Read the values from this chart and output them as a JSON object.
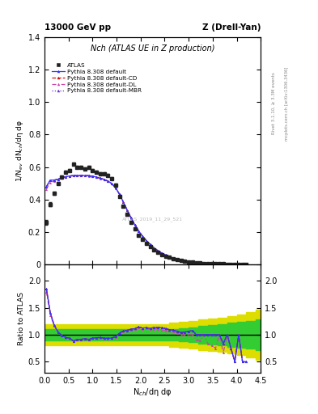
{
  "title_top": "13000 GeV pp",
  "title_right": "Z (Drell-Yan)",
  "plot_title": "Nch (ATLAS UE in Z production)",
  "ylabel_main": "1/N$_{ev}$ dN$_{ch}$/dη dφ",
  "ylabel_ratio": "Ratio to ATLAS",
  "xlabel": "N$_{ch}$/dη dφ",
  "right_label_top": "Rivet 3.1.10, ≥ 3.3M events",
  "right_label_bottom": "mcplots.cern.ch [arXiv:1306.3436]",
  "watermark": "ATLAS_2019_11_29_521",
  "xlim": [
    0,
    4.5
  ],
  "ylim_main": [
    0,
    1.4
  ],
  "ylim_ratio": [
    0.3,
    2.3
  ],
  "yticks_main": [
    0.0,
    0.2,
    0.4,
    0.6,
    0.8,
    1.0,
    1.2,
    1.4
  ],
  "yticks_ratio": [
    0.5,
    1.0,
    1.5,
    2.0
  ],
  "atlas_x": [
    0.04,
    0.12,
    0.2,
    0.28,
    0.36,
    0.44,
    0.52,
    0.6,
    0.68,
    0.76,
    0.84,
    0.92,
    1.0,
    1.08,
    1.16,
    1.24,
    1.32,
    1.4,
    1.48,
    1.56,
    1.64,
    1.72,
    1.8,
    1.88,
    1.96,
    2.04,
    2.12,
    2.2,
    2.28,
    2.36,
    2.44,
    2.52,
    2.6,
    2.68,
    2.76,
    2.84,
    2.92,
    3.0,
    3.08,
    3.16,
    3.24,
    3.32,
    3.4,
    3.48,
    3.56,
    3.64,
    3.72,
    3.8,
    3.88,
    3.96,
    4.04,
    4.12,
    4.2
  ],
  "atlas_y": [
    0.26,
    0.37,
    0.44,
    0.5,
    0.54,
    0.57,
    0.58,
    0.62,
    0.6,
    0.6,
    0.59,
    0.6,
    0.58,
    0.57,
    0.56,
    0.56,
    0.55,
    0.53,
    0.49,
    0.42,
    0.36,
    0.31,
    0.26,
    0.22,
    0.18,
    0.155,
    0.13,
    0.11,
    0.09,
    0.075,
    0.062,
    0.052,
    0.043,
    0.036,
    0.03,
    0.025,
    0.02,
    0.016,
    0.013,
    0.011,
    0.009,
    0.007,
    0.006,
    0.005,
    0.004,
    0.003,
    0.003,
    0.002,
    0.002,
    0.002,
    0.001,
    0.001,
    0.001
  ],
  "atlas_yerr": [
    0.015,
    0.012,
    0.01,
    0.009,
    0.009,
    0.008,
    0.008,
    0.008,
    0.008,
    0.008,
    0.008,
    0.008,
    0.007,
    0.007,
    0.007,
    0.007,
    0.007,
    0.006,
    0.006,
    0.005,
    0.005,
    0.004,
    0.004,
    0.003,
    0.003,
    0.003,
    0.002,
    0.002,
    0.002,
    0.002,
    0.001,
    0.001,
    0.001,
    0.001,
    0.001,
    0.001,
    0.001,
    0.001,
    0.001,
    0.001,
    0.0005,
    0.0005,
    0.0005,
    0.0004,
    0.0004,
    0.0003,
    0.0003,
    0.0003,
    0.0002,
    0.0002,
    0.0002,
    0.0001,
    0.0001
  ],
  "py_x": [
    0.04,
    0.12,
    0.2,
    0.28,
    0.36,
    0.44,
    0.52,
    0.6,
    0.68,
    0.76,
    0.84,
    0.92,
    1.0,
    1.08,
    1.16,
    1.24,
    1.32,
    1.4,
    1.48,
    1.56,
    1.64,
    1.72,
    1.8,
    1.88,
    1.96,
    2.04,
    2.12,
    2.2,
    2.28,
    2.36,
    2.44,
    2.52,
    2.6,
    2.68,
    2.76,
    2.84,
    2.92,
    3.0,
    3.08,
    3.16,
    3.24,
    3.32,
    3.4,
    3.48,
    3.56,
    3.64,
    3.72,
    3.8,
    3.88,
    3.96,
    4.04,
    4.12,
    4.2
  ],
  "py_default_y": [
    0.48,
    0.52,
    0.52,
    0.525,
    0.535,
    0.54,
    0.545,
    0.548,
    0.548,
    0.548,
    0.548,
    0.547,
    0.544,
    0.538,
    0.532,
    0.524,
    0.514,
    0.498,
    0.472,
    0.433,
    0.385,
    0.335,
    0.287,
    0.245,
    0.206,
    0.174,
    0.147,
    0.123,
    0.102,
    0.085,
    0.07,
    0.058,
    0.047,
    0.039,
    0.032,
    0.026,
    0.021,
    0.017,
    0.014,
    0.011,
    0.009,
    0.007,
    0.006,
    0.005,
    0.004,
    0.003,
    0.0025,
    0.002,
    0.0015,
    0.001,
    0.001,
    0.0005,
    0.0005
  ],
  "py_cd_y": [
    0.48,
    0.52,
    0.52,
    0.525,
    0.535,
    0.54,
    0.545,
    0.548,
    0.548,
    0.548,
    0.548,
    0.547,
    0.544,
    0.538,
    0.532,
    0.524,
    0.514,
    0.498,
    0.472,
    0.433,
    0.385,
    0.335,
    0.287,
    0.245,
    0.206,
    0.174,
    0.147,
    0.123,
    0.102,
    0.085,
    0.07,
    0.058,
    0.047,
    0.039,
    0.032,
    0.026,
    0.021,
    0.017,
    0.014,
    0.011,
    0.009,
    0.007,
    0.006,
    0.005,
    0.004,
    0.003,
    0.0025,
    0.002,
    0.0015,
    0.001,
    0.001,
    0.0005,
    0.0005
  ],
  "py_dl_y": [
    0.465,
    0.505,
    0.515,
    0.523,
    0.532,
    0.537,
    0.543,
    0.546,
    0.546,
    0.546,
    0.546,
    0.545,
    0.542,
    0.536,
    0.53,
    0.522,
    0.512,
    0.496,
    0.47,
    0.431,
    0.383,
    0.333,
    0.285,
    0.243,
    0.204,
    0.172,
    0.145,
    0.121,
    0.1,
    0.083,
    0.068,
    0.056,
    0.046,
    0.038,
    0.031,
    0.025,
    0.02,
    0.016,
    0.013,
    0.01,
    0.008,
    0.007,
    0.005,
    0.004,
    0.003,
    0.003,
    0.002,
    0.002,
    0.0015,
    0.001,
    0.001,
    0.0005,
    0.0005
  ],
  "py_mbr_y": [
    0.48,
    0.52,
    0.52,
    0.525,
    0.535,
    0.54,
    0.545,
    0.548,
    0.548,
    0.548,
    0.548,
    0.547,
    0.544,
    0.538,
    0.532,
    0.524,
    0.514,
    0.498,
    0.472,
    0.433,
    0.385,
    0.335,
    0.287,
    0.245,
    0.206,
    0.174,
    0.147,
    0.123,
    0.102,
    0.085,
    0.07,
    0.058,
    0.047,
    0.039,
    0.032,
    0.026,
    0.021,
    0.017,
    0.014,
    0.011,
    0.009,
    0.007,
    0.006,
    0.005,
    0.004,
    0.003,
    0.0025,
    0.002,
    0.0015,
    0.001,
    0.001,
    0.0005,
    0.0005
  ],
  "band_x": [
    0.0,
    0.2,
    0.4,
    0.6,
    0.8,
    1.0,
    1.2,
    1.4,
    1.6,
    1.8,
    2.0,
    2.2,
    2.4,
    2.6,
    2.8,
    3.0,
    3.2,
    3.4,
    3.6,
    3.8,
    4.0,
    4.2,
    4.4,
    4.5
  ],
  "band_green": [
    0.1,
    0.1,
    0.1,
    0.1,
    0.1,
    0.1,
    0.1,
    0.1,
    0.1,
    0.1,
    0.1,
    0.1,
    0.1,
    0.1,
    0.12,
    0.14,
    0.16,
    0.18,
    0.2,
    0.22,
    0.24,
    0.26,
    0.28,
    0.28
  ],
  "band_yellow": [
    0.2,
    0.2,
    0.2,
    0.2,
    0.2,
    0.2,
    0.2,
    0.2,
    0.2,
    0.2,
    0.2,
    0.2,
    0.2,
    0.22,
    0.24,
    0.26,
    0.28,
    0.3,
    0.32,
    0.35,
    0.38,
    0.42,
    0.46,
    0.46
  ],
  "colors": {
    "atlas": "#222222",
    "py_default": "#3333ff",
    "py_cd": "#cc1111",
    "py_dl": "#cc44aa",
    "py_mbr": "#6633cc",
    "band_green": "#33cc33",
    "band_yellow": "#dddd00"
  }
}
